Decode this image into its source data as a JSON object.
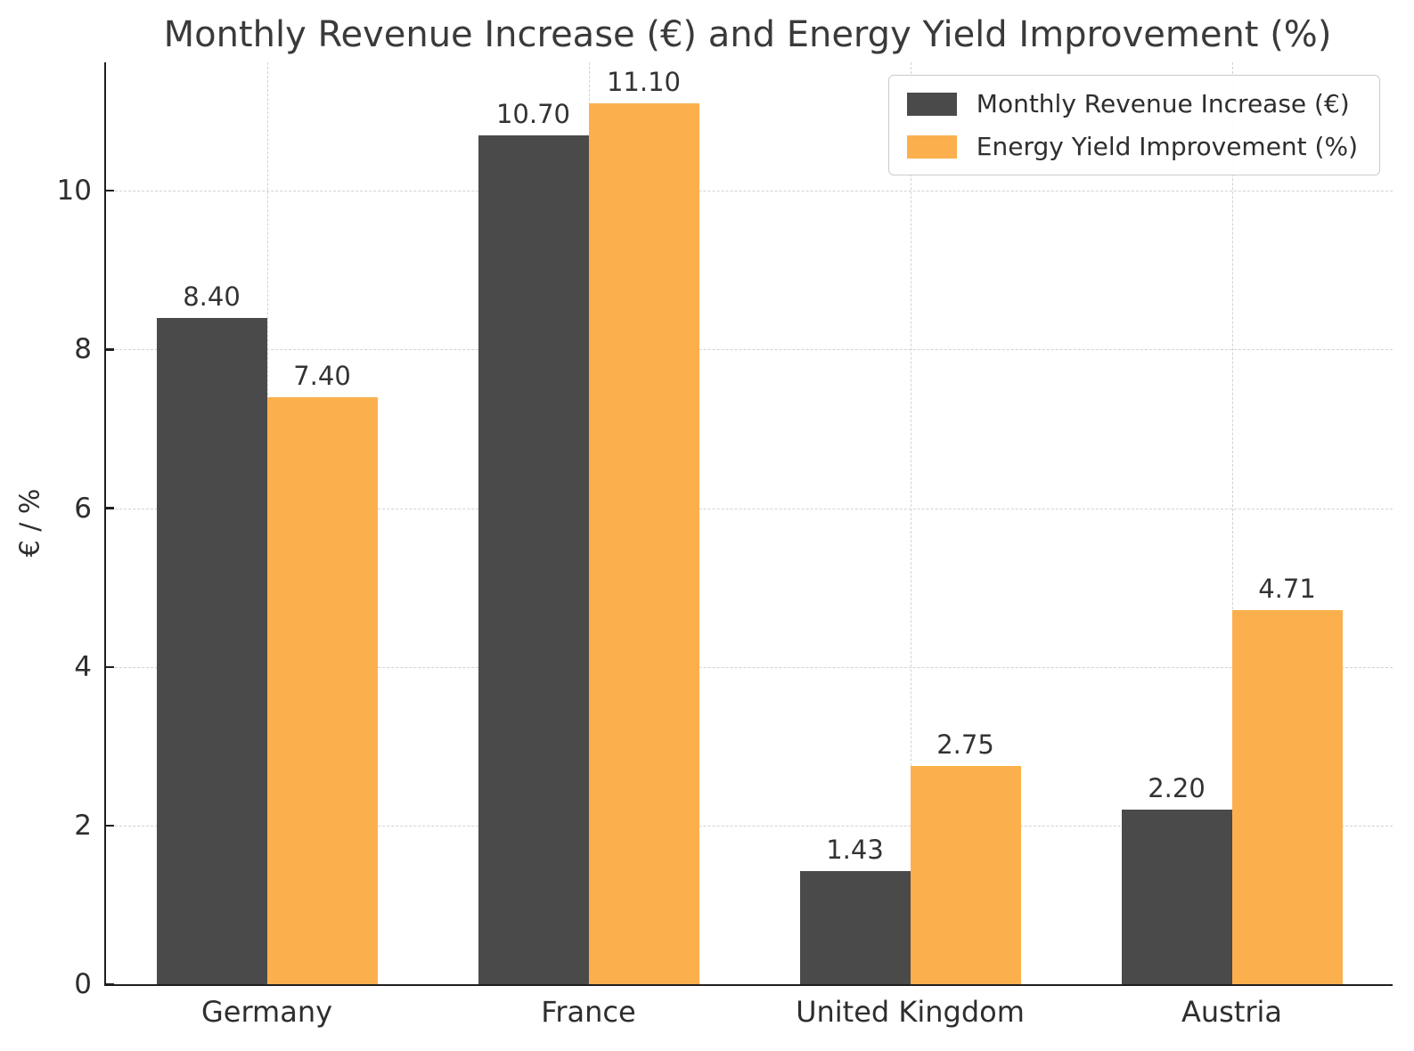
{
  "title": "Monthly Revenue Increase (€) and Energy Yield Improvement (%)",
  "ylabel": "€ / %",
  "colors": {
    "revenue_bar": "#4a4a4a",
    "yield_bar": "#fbb04d",
    "grid": "#d2d2d2",
    "axis": "#1f1f1f",
    "tick_text": "#2e2e2e",
    "title_text": "#3a3a3a",
    "legend_border": "#cccccc"
  },
  "legend": {
    "items": [
      {
        "label": "Monthly Revenue Increase (€)",
        "color": "#4a4a4a"
      },
      {
        "label": "Energy Yield Improvement (%)",
        "color": "#fbb04d"
      }
    ]
  },
  "chart_data": {
    "type": "bar",
    "title": "Monthly Revenue Increase (€) and Energy Yield Improvement (%)",
    "xlabel": "",
    "ylabel": "€ / %",
    "categories": [
      "Germany",
      "France",
      "United Kingdom",
      "Austria"
    ],
    "series": [
      {
        "name": "Monthly Revenue Increase (€)",
        "color": "#4a4a4a",
        "values": [
          8.4,
          10.7,
          1.43,
          2.2
        ],
        "value_labels": [
          "8.40",
          "10.70",
          "1.43",
          "2.20"
        ]
      },
      {
        "name": "Energy Yield Improvement (%)",
        "color": "#fbb04d",
        "values": [
          7.4,
          11.1,
          2.75,
          4.71
        ],
        "value_labels": [
          "7.40",
          "11.10",
          "2.75",
          "4.71"
        ]
      }
    ],
    "yticks": [
      0,
      2,
      4,
      6,
      8,
      10
    ],
    "ylim": [
      0,
      11.62
    ],
    "grid": true,
    "grid_style": "dashed",
    "legend_position": "upper right",
    "bar_value_labels": true
  }
}
